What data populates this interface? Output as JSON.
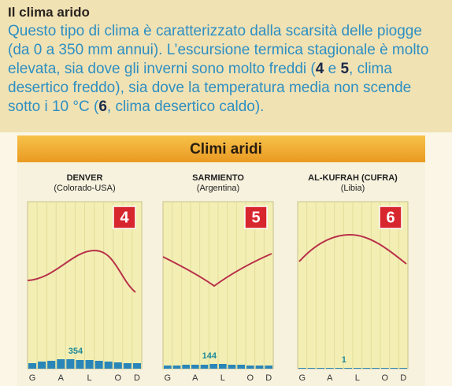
{
  "intro": {
    "title": "Il clima arido",
    "body": [
      "Questo tipo di clima è caratterizzato dalla scarsità delle piogge (da 0 a 350 mm annui). L’escursione termica stagionale è molto elevata, sia dove gli inverni sono molto freddi (",
      "4",
      " e ",
      "5",
      ", clima desertico freddo), sia dove la temperatura media non scende sotto i 10 °C (",
      "6",
      ", clima desertico caldo)."
    ]
  },
  "banner": "Climi aridi",
  "panels": [
    {
      "city": "DENVER",
      "region": "(Colorado-USA)",
      "badge": "4",
      "rain": 354,
      "months": [
        "G",
        "A",
        "L",
        "O",
        "D"
      ]
    },
    {
      "city": "SARMIENTO",
      "region": "(Argentina)",
      "badge": "5",
      "rain": 144,
      "months": [
        "G",
        "A",
        "L",
        "O",
        "D"
      ]
    },
    {
      "city": "AL-KUFRAH (CUFRA)",
      "region": "(Libia)",
      "badge": "6",
      "rain": 1,
      "months": [
        "G",
        "A",
        "L",
        "O",
        "D"
      ]
    }
  ]
}
